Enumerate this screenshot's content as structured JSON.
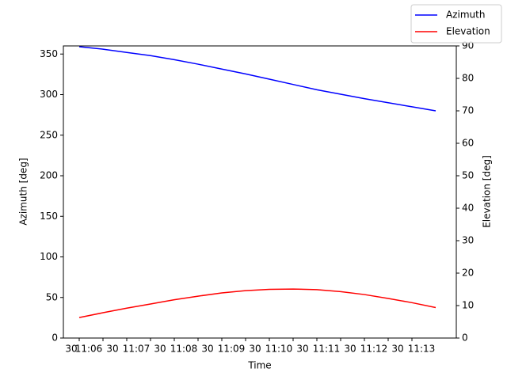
{
  "chart_data": {
    "type": "line",
    "x_label": "Time",
    "y_label": "Azimuth [deg]",
    "y2_label": "Elevation [deg]",
    "x": [
      "11:06:00",
      "11:06:30",
      "11:07:00",
      "11:07:30",
      "11:08:00",
      "11:08:30",
      "11:09:00",
      "11:09:30",
      "11:10:00",
      "11:10:30",
      "11:11:00",
      "11:11:30",
      "11:12:00",
      "11:12:30",
      "11:13:00",
      "11:13:30"
    ],
    "xlim": [
      "11:05:40",
      "11:13:56"
    ],
    "xticks": [
      {
        "value": "11:05:30",
        "label": "30"
      },
      {
        "value": "11:06:00",
        "label": "11:06"
      },
      {
        "value": "11:06:30",
        "label": "30"
      },
      {
        "value": "11:07:00",
        "label": "11:07"
      },
      {
        "value": "11:07:30",
        "label": "30"
      },
      {
        "value": "11:08:00",
        "label": "11:08"
      },
      {
        "value": "11:08:30",
        "label": "30"
      },
      {
        "value": "11:09:00",
        "label": "11:09"
      },
      {
        "value": "11:09:30",
        "label": "30"
      },
      {
        "value": "11:10:00",
        "label": "11:10"
      },
      {
        "value": "11:10:30",
        "label": "30"
      },
      {
        "value": "11:11:00",
        "label": "11:11"
      },
      {
        "value": "11:11:30",
        "label": "30"
      },
      {
        "value": "11:12:00",
        "label": "11:12"
      },
      {
        "value": "11:12:30",
        "label": "30"
      },
      {
        "value": "11:13:00",
        "label": "11:13"
      }
    ],
    "ylim": [
      0,
      360
    ],
    "yticks": [
      0,
      50,
      100,
      150,
      200,
      250,
      300,
      350
    ],
    "y2lim": [
      0,
      90
    ],
    "y2ticks": [
      0,
      10,
      20,
      30,
      40,
      50,
      60,
      70,
      80,
      90
    ],
    "legend": "upper right",
    "series": [
      {
        "name": "Azimuth",
        "color": "#0000ff",
        "values": [
          359,
          356,
          352,
          348,
          343,
          337.5,
          331.5,
          325.5,
          319,
          312.5,
          306,
          300.5,
          295,
          290,
          285,
          280
        ]
      },
      {
        "name": "Elevation",
        "color": "#ff0000",
        "axis": "y2",
        "values": [
          6.3,
          7.8,
          9.2,
          10.5,
          11.8,
          12.9,
          13.9,
          14.6,
          15.0,
          15.1,
          14.9,
          14.3,
          13.4,
          12.2,
          10.9,
          9.4
        ]
      }
    ]
  }
}
